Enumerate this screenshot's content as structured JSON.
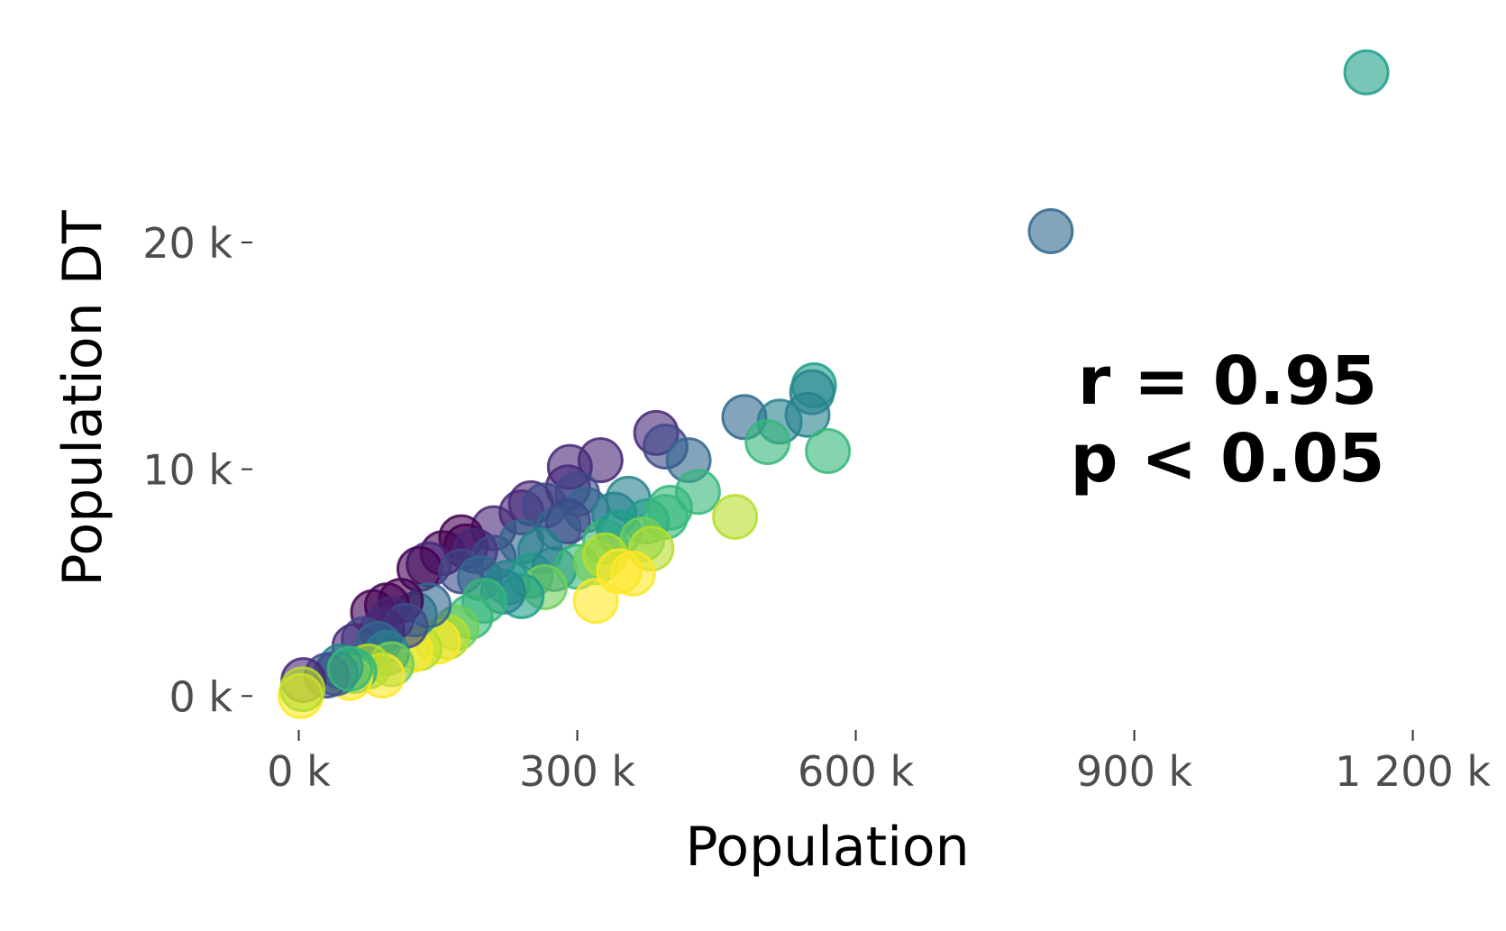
{
  "chart_data": {
    "type": "scatter",
    "xlabel": "Population",
    "ylabel": "Population DT",
    "xlim": [
      -50000,
      1280000
    ],
    "ylim": [
      -1500,
      29500
    ],
    "x_ticks": [
      {
        "value": 0,
        "label": "0 k"
      },
      {
        "value": 300000,
        "label": "300 k"
      },
      {
        "value": 600000,
        "label": "600 k"
      },
      {
        "value": 900000,
        "label": "900 k"
      },
      {
        "value": 1200000,
        "label": "1 200 k"
      }
    ],
    "y_ticks": [
      {
        "value": 0,
        "label": "0 k"
      },
      {
        "value": 10000,
        "label": "10 k"
      },
      {
        "value": 20000,
        "label": "20 k"
      }
    ],
    "annotation": [
      "r = 0.95",
      "p < 0.05"
    ],
    "grid": false,
    "legend": "none",
    "palette": [
      "#440154",
      "#482878",
      "#3e4a89",
      "#31688e",
      "#26828e",
      "#1f9e89",
      "#35b779",
      "#6ece58",
      "#b5de2b",
      "#fde725"
    ],
    "point_opacity": 0.6,
    "points": [
      {
        "x": 1150000,
        "y": 27500,
        "color": "#1f9e89"
      },
      {
        "x": 810000,
        "y": 20500,
        "color": "#31688e"
      },
      {
        "x": 555000,
        "y": 13700,
        "color": "#1f9e89"
      },
      {
        "x": 553000,
        "y": 13400,
        "color": "#26828e"
      },
      {
        "x": 548000,
        "y": 12400,
        "color": "#26828e"
      },
      {
        "x": 480000,
        "y": 12300,
        "color": "#31688e"
      },
      {
        "x": 518000,
        "y": 12100,
        "color": "#26828e"
      },
      {
        "x": 505000,
        "y": 11200,
        "color": "#35b779"
      },
      {
        "x": 570000,
        "y": 10800,
        "color": "#35b779"
      },
      {
        "x": 385000,
        "y": 11600,
        "color": "#482878"
      },
      {
        "x": 395000,
        "y": 11000,
        "color": "#3e4a89"
      },
      {
        "x": 420000,
        "y": 10400,
        "color": "#31688e"
      },
      {
        "x": 325000,
        "y": 10400,
        "color": "#482878"
      },
      {
        "x": 292000,
        "y": 10100,
        "color": "#482878"
      },
      {
        "x": 430000,
        "y": 9000,
        "color": "#35b779"
      },
      {
        "x": 470000,
        "y": 7900,
        "color": "#b5de2b"
      },
      {
        "x": 290000,
        "y": 9200,
        "color": "#482878"
      },
      {
        "x": 300000,
        "y": 8900,
        "color": "#3e4a89"
      },
      {
        "x": 250000,
        "y": 8500,
        "color": "#482878"
      },
      {
        "x": 240000,
        "y": 8100,
        "color": "#482878"
      },
      {
        "x": 265000,
        "y": 8400,
        "color": "#3e4a89"
      },
      {
        "x": 310000,
        "y": 8200,
        "color": "#31688e"
      },
      {
        "x": 355000,
        "y": 8700,
        "color": "#26828e"
      },
      {
        "x": 340000,
        "y": 8000,
        "color": "#26828e"
      },
      {
        "x": 375000,
        "y": 7700,
        "color": "#1f9e89"
      },
      {
        "x": 395000,
        "y": 7900,
        "color": "#35b779"
      },
      {
        "x": 400000,
        "y": 8300,
        "color": "#35b779"
      },
      {
        "x": 280000,
        "y": 7400,
        "color": "#31688e"
      },
      {
        "x": 290000,
        "y": 7700,
        "color": "#3e4a89"
      },
      {
        "x": 210000,
        "y": 7400,
        "color": "#482878"
      },
      {
        "x": 175000,
        "y": 7000,
        "color": "#440154"
      },
      {
        "x": 180000,
        "y": 6600,
        "color": "#440154"
      },
      {
        "x": 155000,
        "y": 6300,
        "color": "#440154"
      },
      {
        "x": 190000,
        "y": 6400,
        "color": "#482878"
      },
      {
        "x": 210000,
        "y": 6100,
        "color": "#3e4a89"
      },
      {
        "x": 240000,
        "y": 6800,
        "color": "#31688e"
      },
      {
        "x": 260000,
        "y": 6400,
        "color": "#26828e"
      },
      {
        "x": 330000,
        "y": 6800,
        "color": "#35b779"
      },
      {
        "x": 345000,
        "y": 7200,
        "color": "#1f9e89"
      },
      {
        "x": 370000,
        "y": 6900,
        "color": "#6ece58"
      },
      {
        "x": 380000,
        "y": 6500,
        "color": "#b5de2b"
      },
      {
        "x": 140000,
        "y": 5800,
        "color": "#482878"
      },
      {
        "x": 130000,
        "y": 5600,
        "color": "#440154"
      },
      {
        "x": 175000,
        "y": 5500,
        "color": "#3e4a89"
      },
      {
        "x": 195000,
        "y": 5200,
        "color": "#31688e"
      },
      {
        "x": 225000,
        "y": 5000,
        "color": "#26828e"
      },
      {
        "x": 250000,
        "y": 5300,
        "color": "#1f9e89"
      },
      {
        "x": 275000,
        "y": 5600,
        "color": "#26828e"
      },
      {
        "x": 300000,
        "y": 5700,
        "color": "#35b779"
      },
      {
        "x": 320000,
        "y": 5900,
        "color": "#6ece58"
      },
      {
        "x": 330000,
        "y": 6200,
        "color": "#b5de2b"
      },
      {
        "x": 345000,
        "y": 5500,
        "color": "#fde725"
      },
      {
        "x": 360000,
        "y": 5400,
        "color": "#fde725"
      },
      {
        "x": 320000,
        "y": 4200,
        "color": "#fde725"
      },
      {
        "x": 265000,
        "y": 4800,
        "color": "#6ece58"
      },
      {
        "x": 240000,
        "y": 4400,
        "color": "#1f9e89"
      },
      {
        "x": 220000,
        "y": 4600,
        "color": "#26828e"
      },
      {
        "x": 200000,
        "y": 4200,
        "color": "#35b779"
      },
      {
        "x": 185000,
        "y": 3500,
        "color": "#35b779"
      },
      {
        "x": 170000,
        "y": 3000,
        "color": "#6ece58"
      },
      {
        "x": 160000,
        "y": 2600,
        "color": "#b5de2b"
      },
      {
        "x": 150000,
        "y": 2400,
        "color": "#fde725"
      },
      {
        "x": 130000,
        "y": 2100,
        "color": "#b5de2b"
      },
      {
        "x": 120000,
        "y": 2000,
        "color": "#fde725"
      },
      {
        "x": 125000,
        "y": 3600,
        "color": "#26828e"
      },
      {
        "x": 140000,
        "y": 4000,
        "color": "#31688e"
      },
      {
        "x": 110000,
        "y": 4200,
        "color": "#440154"
      },
      {
        "x": 95000,
        "y": 4000,
        "color": "#440154"
      },
      {
        "x": 80000,
        "y": 3700,
        "color": "#440154"
      },
      {
        "x": 100000,
        "y": 3400,
        "color": "#482878"
      },
      {
        "x": 115000,
        "y": 3100,
        "color": "#3e4a89"
      },
      {
        "x": 90000,
        "y": 2900,
        "color": "#482878"
      },
      {
        "x": 70000,
        "y": 2500,
        "color": "#3e4a89"
      },
      {
        "x": 60000,
        "y": 2200,
        "color": "#482878"
      },
      {
        "x": 85000,
        "y": 2300,
        "color": "#31688e"
      },
      {
        "x": 95000,
        "y": 1900,
        "color": "#26828e"
      },
      {
        "x": 100000,
        "y": 1400,
        "color": "#6ece58"
      },
      {
        "x": 90000,
        "y": 900,
        "color": "#fde725"
      },
      {
        "x": 75000,
        "y": 1300,
        "color": "#b5de2b"
      },
      {
        "x": 60000,
        "y": 1100,
        "color": "#35b779"
      },
      {
        "x": 55000,
        "y": 800,
        "color": "#fde725"
      },
      {
        "x": 45000,
        "y": 1300,
        "color": "#26828e"
      },
      {
        "x": 40000,
        "y": 1000,
        "color": "#31688e"
      },
      {
        "x": 30000,
        "y": 900,
        "color": "#3e4a89"
      },
      {
        "x": 55000,
        "y": 1200,
        "color": "#35b779"
      },
      {
        "x": 5000,
        "y": 700,
        "color": "#482878"
      },
      {
        "x": 2000,
        "y": 0,
        "color": "#fde725"
      },
      {
        "x": 4000,
        "y": 300,
        "color": "#b5de2b"
      }
    ]
  }
}
